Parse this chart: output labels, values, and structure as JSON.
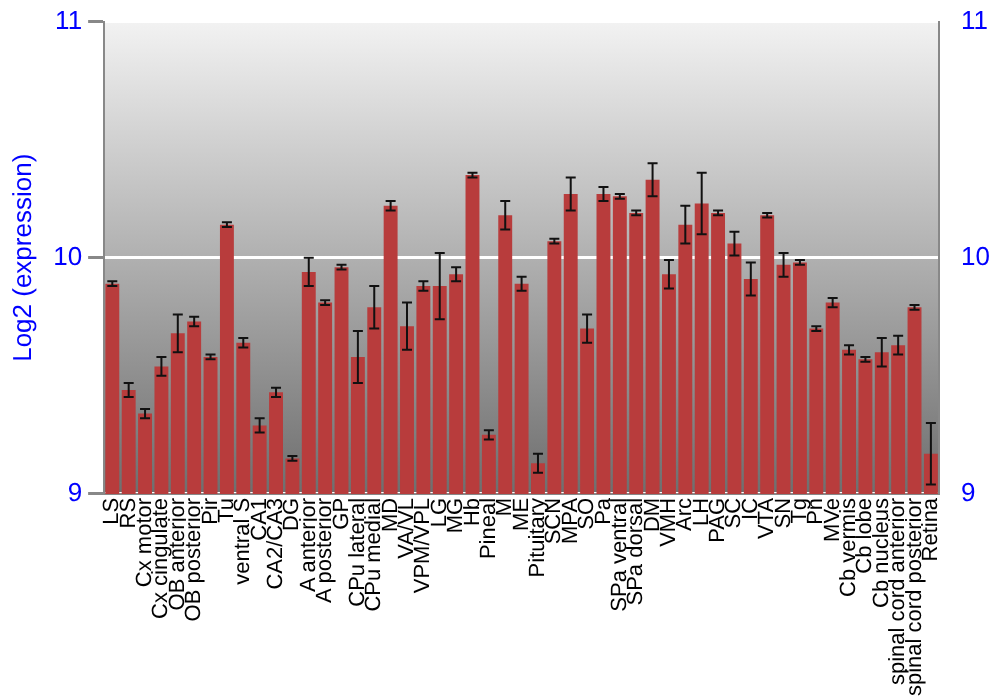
{
  "chart_data": {
    "type": "bar",
    "ylabel": "Log2 (expression)",
    "categories": [
      "LS",
      "RS",
      "Cx motor",
      "Cx cingulate",
      "OB anterior",
      "OB posterior",
      "Pir",
      "Tu",
      "ventral S",
      "CA1",
      "CA2/CA3",
      "DG",
      "A anterior",
      "A posterior",
      "GP",
      "CPu lateral",
      "CPu medial",
      "MD",
      "VA/VL",
      "VPM/VPL",
      "LG",
      "MG",
      "Hb",
      "Pineal",
      "M",
      "ME",
      "Pituitary",
      "SCN",
      "MPA",
      "SO",
      "Pa",
      "SPa ventral",
      "SPa dorsal",
      "DM",
      "VMH",
      "Arc",
      "LH",
      "PAG",
      "SC",
      "IC",
      "VTA",
      "SN",
      "Tg",
      "Pn",
      "MVe",
      "Cb vermis",
      "Cb lobe",
      "Cb nucleus",
      "spinal cord anterior",
      "spinal cord posterior",
      "Retina"
    ],
    "values": [
      9.89,
      9.44,
      9.34,
      9.54,
      9.68,
      9.73,
      9.58,
      10.14,
      9.64,
      9.29,
      9.43,
      9.15,
      9.94,
      9.81,
      9.96,
      9.58,
      9.79,
      10.22,
      9.71,
      9.88,
      9.88,
      9.93,
      10.35,
      9.25,
      10.18,
      9.89,
      9.13,
      10.07,
      10.27,
      9.7,
      10.27,
      10.26,
      10.19,
      10.33,
      9.93,
      10.14,
      10.23,
      10.19,
      10.06,
      9.91,
      10.18,
      9.97,
      9.98,
      9.7,
      9.81,
      9.61,
      9.57,
      9.6,
      9.63,
      9.79,
      9.17
    ],
    "errors": [
      0.01,
      0.03,
      0.02,
      0.04,
      0.08,
      0.02,
      0.01,
      0.01,
      0.02,
      0.03,
      0.02,
      0.01,
      0.06,
      0.01,
      0.01,
      0.11,
      0.09,
      0.02,
      0.1,
      0.02,
      0.14,
      0.03,
      0.01,
      0.02,
      0.06,
      0.03,
      0.04,
      0.01,
      0.07,
      0.06,
      0.03,
      0.01,
      0.01,
      0.07,
      0.06,
      0.08,
      0.13,
      0.01,
      0.05,
      0.07,
      0.01,
      0.05,
      0.01,
      0.01,
      0.02,
      0.02,
      0.01,
      0.06,
      0.04,
      0.01,
      0.13
    ],
    "color": "#b83c3c",
    "ylim": [
      9,
      11
    ],
    "yticks": [
      9,
      10,
      11
    ],
    "y2lim": [
      9,
      11
    ],
    "y2ticks": [
      9,
      10,
      11
    ],
    "grid": "y",
    "legend": false
  }
}
